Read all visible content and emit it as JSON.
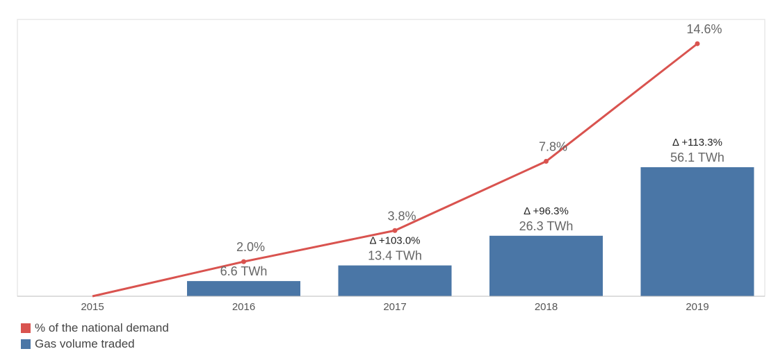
{
  "chart_data": {
    "type": "bar+line",
    "categories": [
      "2015",
      "2016",
      "2017",
      "2018",
      "2019"
    ],
    "series": [
      {
        "name": "Gas volume traded",
        "type": "bar",
        "unit": "TWh",
        "color": "#4a76a6",
        "values": [
          null,
          6.6,
          13.4,
          26.3,
          56.1
        ],
        "labels": [
          "",
          "6.6 TWh",
          "13.4 TWh",
          "26.3 TWh",
          "56.1 TWh"
        ],
        "delta_labels": [
          "",
          "",
          "Δ +103.0%",
          "Δ +96.3%",
          "Δ +113.3%"
        ]
      },
      {
        "name": "% of the national demand",
        "type": "line",
        "unit": "%",
        "color": "#d9534f",
        "values": [
          0,
          2.0,
          3.8,
          7.8,
          14.6
        ],
        "labels": [
          "",
          "2.0%",
          "3.8%",
          "7.8%",
          "14.6%"
        ]
      }
    ],
    "legend": [
      "% of the national demand",
      "Gas volume traded"
    ],
    "legend_position": "bottom-left",
    "grid": false
  }
}
